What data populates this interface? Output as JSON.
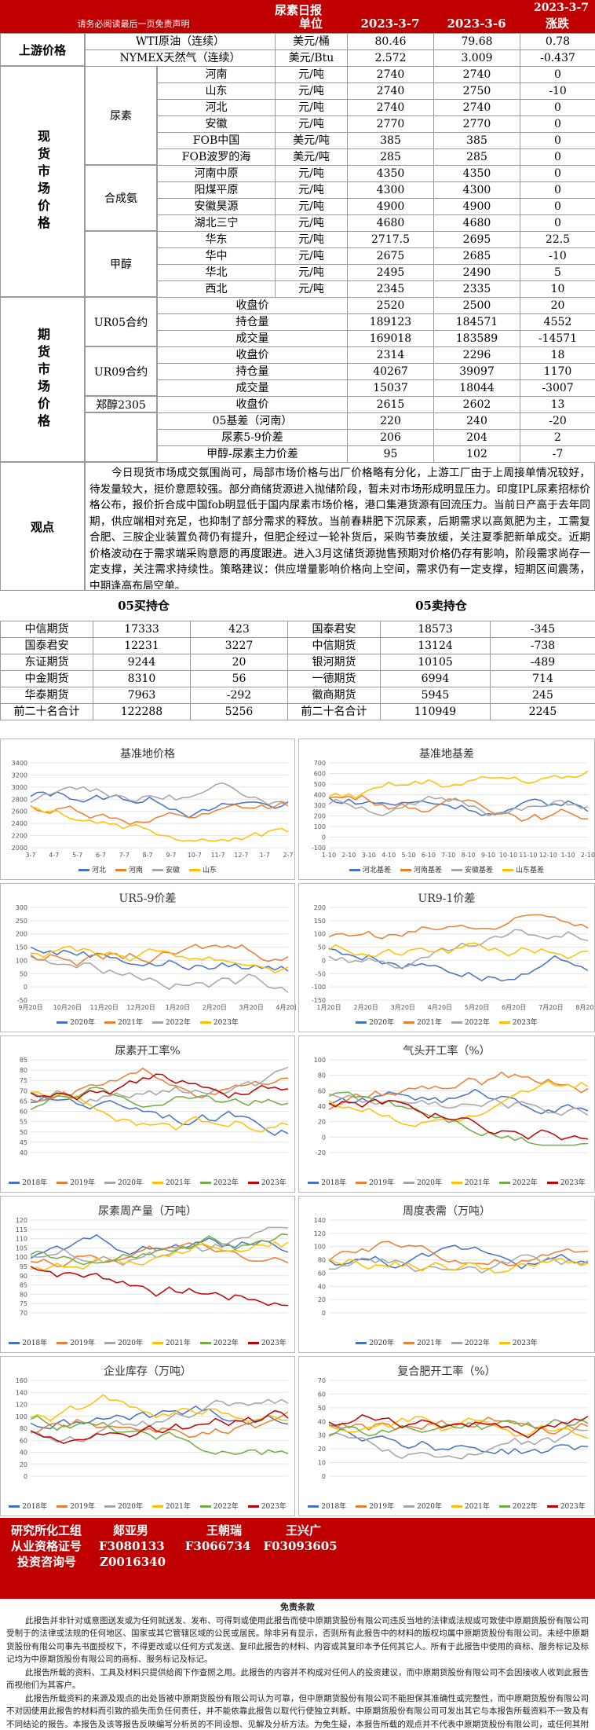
{
  "header": {
    "title": "尿素日报",
    "date": "2023-3-7",
    "disclaimer_link": "请务必阅读最后一页免责声明",
    "col_unit": "单位",
    "col_d1": "2023-3-7",
    "col_d2": "2023-3-6",
    "col_chg": "涨跌"
  },
  "upstream": {
    "label": "上游价格",
    "rows": [
      {
        "name": "WTI原油（连续）",
        "unit": "美元/桶",
        "v1": "80.46",
        "v2": "79.68",
        "chg": "0.78"
      },
      {
        "name": "NYMEX天然气（连续）",
        "unit": "美元/Btu",
        "v1": "2.572",
        "v2": "3.009",
        "chg": "-0.437"
      }
    ]
  },
  "spot": {
    "label": "现货市场价格",
    "groups": [
      {
        "name": "尿素",
        "rows": [
          {
            "name": "河南",
            "unit": "元/吨",
            "v1": "2740",
            "v2": "2740",
            "chg": "0"
          },
          {
            "name": "山东",
            "unit": "元/吨",
            "v1": "2740",
            "v2": "2750",
            "chg": "-10"
          },
          {
            "name": "河北",
            "unit": "元/吨",
            "v1": "2740",
            "v2": "2740",
            "chg": "0"
          },
          {
            "name": "安徽",
            "unit": "元/吨",
            "v1": "2770",
            "v2": "2770",
            "chg": "0"
          },
          {
            "name": "FOB中国",
            "unit": "美元/吨",
            "v1": "385",
            "v2": "385",
            "chg": "0"
          },
          {
            "name": "FOB波罗的海",
            "unit": "美元/吨",
            "v1": "285",
            "v2": "285",
            "chg": "0"
          }
        ]
      },
      {
        "name": "合成氨",
        "rows": [
          {
            "name": "河南中原",
            "unit": "元/吨",
            "v1": "4350",
            "v2": "4350",
            "chg": "0"
          },
          {
            "name": "阳煤平原",
            "unit": "元/吨",
            "v1": "4300",
            "v2": "4300",
            "chg": "0"
          },
          {
            "name": "安徽昊源",
            "unit": "元/吨",
            "v1": "4900",
            "v2": "4900",
            "chg": "0"
          },
          {
            "name": "湖北三宁",
            "unit": "元/吨",
            "v1": "4680",
            "v2": "4680",
            "chg": "0"
          }
        ]
      },
      {
        "name": "甲醇",
        "rows": [
          {
            "name": "华东",
            "unit": "元/吨",
            "v1": "2717.5",
            "v2": "2695",
            "chg": "22.5"
          },
          {
            "name": "华中",
            "unit": "元/吨",
            "v1": "2675",
            "v2": "2685",
            "chg": "-10"
          },
          {
            "name": "华北",
            "unit": "元/吨",
            "v1": "2495",
            "v2": "2490",
            "chg": "5"
          },
          {
            "name": "西北",
            "unit": "元/吨",
            "v1": "2345",
            "v2": "2335",
            "chg": "10"
          }
        ]
      }
    ]
  },
  "futures": {
    "label": "期货市场价格",
    "groups": [
      {
        "name": "UR05合约",
        "rows": [
          {
            "name": "收盘价",
            "v1": "2520",
            "v2": "2500",
            "chg": "20"
          },
          {
            "name": "持仓量",
            "v1": "189123",
            "v2": "184571",
            "chg": "4552"
          },
          {
            "name": "成交量",
            "v1": "169018",
            "v2": "183589",
            "chg": "-14571"
          }
        ]
      },
      {
        "name": "UR09合约",
        "rows": [
          {
            "name": "收盘价",
            "v1": "2314",
            "v2": "2296",
            "chg": "18"
          },
          {
            "name": "持仓量",
            "v1": "40267",
            "v2": "39097",
            "chg": "1170"
          },
          {
            "name": "成交量",
            "v1": "15037",
            "v2": "18044",
            "chg": "-3007"
          }
        ]
      },
      {
        "name": "郑醇2305",
        "rows": [
          {
            "name": "收盘价",
            "v1": "2615",
            "v2": "2602",
            "chg": "13"
          }
        ]
      }
    ],
    "spreads": [
      {
        "name": "05基差（河南）",
        "v1": "220",
        "v2": "240",
        "chg": "-20"
      },
      {
        "name": "尿素5-9价差",
        "v1": "206",
        "v2": "204",
        "chg": "2"
      },
      {
        "name": "甲醇-尿素主力价差",
        "v1": "95",
        "v2": "102",
        "chg": "-7"
      }
    ]
  },
  "opinion": {
    "label": "观点",
    "text": "今日现货市场成交氛围尚可，局部市场价格与出厂价格略有分化，上游工厂由于上周接单情况较好，待发量较大，挺价意愿较强。部分商储货源进入抛储阶段，暂未对市场形成明显压力。印度IPL尿素招标价格公布，报价折合成中国fob明显低于国内尿素市场价格，港口集港货源有回流压力。当前日产高于去年同期，供应端相对充足，也抑制了部分需求的释放。当前春耕肥下沉尿素，后期需求以高氮肥为主，工需复合肥、三胺企业装置负荷仍有提升，但肥企经过一轮补货后，采购节奏放缓，关注夏季肥新单成交。近期价格波动在于需求端采购意愿的再度跟进。进入3月这储货源抛售预期对价格仍存有影响，阶段需求尚存一定支撑，关注需求持续性。策略建议：供应增量影响价格向上空间，需求仍有一定支撑，短期区间震荡，中期逢高布局空单。"
  },
  "positions": {
    "long_title": "05买持仓",
    "short_title": "05卖持仓",
    "long": [
      {
        "name": "中信期货",
        "v": "17333",
        "chg": "423"
      },
      {
        "name": "国泰君安",
        "v": "12231",
        "chg": "3227"
      },
      {
        "name": "东证期货",
        "v": "9244",
        "chg": "20"
      },
      {
        "name": "中金期货",
        "v": "8310",
        "chg": "56"
      },
      {
        "name": "华泰期货",
        "v": "7963",
        "chg": "-292"
      },
      {
        "name": "前二十名合计",
        "v": "122288",
        "chg": "5256"
      }
    ],
    "short": [
      {
        "name": "国泰君安",
        "v": "18573",
        "chg": "-345"
      },
      {
        "name": "中信期货",
        "v": "13124",
        "chg": "-738"
      },
      {
        "name": "银河期货",
        "v": "10105",
        "chg": "-489"
      },
      {
        "name": "一德期货",
        "v": "6994",
        "chg": "714"
      },
      {
        "name": "徽商期货",
        "v": "5945",
        "chg": "245"
      },
      {
        "name": "前二十名合计",
        "v": "110949",
        "chg": "2245"
      }
    ]
  },
  "charts": [
    {
      "title": "基准地价格",
      "legend": [
        "河北",
        "河南",
        "安徽",
        "山东"
      ],
      "xticks": [
        "3-7",
        "4-7",
        "5-7",
        "6-7",
        "7-7",
        "8-7",
        "9-7",
        "10-7",
        "11-7",
        "12-7",
        "1-7",
        "2-7"
      ],
      "yticks": [
        "3400",
        "3200",
        "3000",
        "2800",
        "2600",
        "2400",
        "2200",
        "2000"
      ]
    },
    {
      "title": "基准地基差",
      "legend": [
        "河北基差",
        "河南基差",
        "安徽基差",
        "山东基差"
      ],
      "xticks": [
        "1-10",
        "2-10",
        "3-10",
        "4-10",
        "5-10",
        "6-10",
        "7-10",
        "8-10",
        "9-10",
        "10-10",
        "11-10",
        "12-10",
        "1-10",
        "2-10"
      ],
      "yticks": [
        "700",
        "600",
        "500",
        "400",
        "300",
        "200",
        "100",
        "0",
        "-100"
      ]
    },
    {
      "title": "UR5-9价差",
      "legend": [
        "2020年",
        "2021年",
        "2022年",
        "2023年"
      ],
      "xticks": [
        "9月20日",
        "10月20日",
        "11月20日",
        "12月20日",
        "1月20日",
        "2月20日",
        "3月20日",
        "4月20日"
      ],
      "yticks": [
        "300",
        "250",
        "200",
        "150",
        "100",
        "50",
        "0",
        "-50"
      ]
    },
    {
      "title": "UR9-1价差",
      "legend": [
        "2020年",
        "2021年",
        "2022年",
        "2023年"
      ],
      "xticks": [
        "1月20日",
        "2月20日",
        "3月20日",
        "4月20日",
        "5月20日",
        "6月20日",
        "7月20日",
        "8月20日"
      ],
      "yticks": [
        "200",
        "150",
        "100",
        "50",
        "0",
        "-50",
        "-100",
        "-150"
      ]
    },
    {
      "title": "尿素开工率%",
      "legend": [
        "2018年",
        "2019年",
        "2020年",
        "2021年",
        "2022年",
        "2023年"
      ],
      "yticks": [
        "85",
        "80",
        "75",
        "70",
        "65",
        "60",
        "55",
        "50",
        "45",
        "40"
      ]
    },
    {
      "title": "气头开工率（%）",
      "legend": [
        "2018年",
        "2019年",
        "2020年",
        "2021年",
        "2022年",
        "2023年"
      ],
      "yticks": [
        "100",
        "80",
        "60",
        "40",
        "20",
        "0",
        "-20"
      ]
    },
    {
      "title": "尿素周产量（万吨）",
      "legend": [
        "2018年",
        "2019年",
        "2020年",
        "2021年",
        "2022年",
        "2023年"
      ],
      "yticks": [
        "120",
        "115",
        "110",
        "105",
        "100",
        "95",
        "90",
        "85",
        "80",
        "75",
        "70"
      ]
    },
    {
      "title": "周度表需（万吨）",
      "legend": [
        "2020年",
        "2021年",
        "2022年",
        "2023年"
      ],
      "yticks": [
        "140",
        "120",
        "100",
        "80",
        "60",
        "40",
        "20",
        "0"
      ]
    },
    {
      "title": "企业库存（万吨）",
      "legend": [
        "2018年",
        "2019年",
        "2020年",
        "2021年",
        "2022年",
        "2023年"
      ],
      "yticks": [
        "160",
        "140",
        "120",
        "100",
        "80",
        "60",
        "40",
        "20",
        "0"
      ]
    },
    {
      "title": "复合肥开工率（%）",
      "legend": [
        "2018年",
        "2019年",
        "2020年",
        "2021年",
        "2022年",
        "2023年"
      ],
      "yticks": [
        "70",
        "60",
        "50",
        "40",
        "30",
        "20",
        "10",
        "0"
      ]
    }
  ],
  "footer": {
    "l1": "研究所化工组",
    "l1a": "郯亚男",
    "l1b": "王朝瑞",
    "l1c": "王兴广",
    "l2": "从业资格证号",
    "l2a": "F3080133",
    "l2b": "F3066734",
    "l2c": "F03093605",
    "l3": "投资咨询号",
    "l3a": "Z0016340"
  },
  "disclaimer": {
    "title": "免责条款",
    "p1": "此报告并非针对或意图送发或为任何就送发、发布、可得到或使用此报告而使中原期货股份有限公司违反当地的法律或法规或可致使中原期货股份有限公司受制于的法律或法规的任何地区、国家或其它管辖区域的公民或居民。除非另有显示，否则所有此报告中的材料的版权均属中原期货股份有限公司。未经中原期货股份有限公司事先书面授权下，不得更改或以任何方式发送、复印此报告的材料、内容或其复印本予任何其它人。所有于此报告中使用的商标、服务标记及标记均为中原期货股份有限公司的商标、服务标记及标记。",
    "p2": "此报告所载的资料、工具及材料只提供给阁下作查照之用。此报告的内容并不构成对任何人的投资建议，而中原期货股份有限公司不会因接收人收到此报告而视他们为其客户。",
    "p3": "此报告所载资料的来源及观点的出处皆被中原期货股份有限公司认为可靠，但中原期货股份有限公司不能担保其准确性或完整性，而中原期货股份有限公司不对因使用此报告的材料而引致的损失而负任何责任，并不能依靠此报告以取代行使独立判断。中原期货股份有限公司可发出其它与本报告所载资料不一致及有不同结论的报告。本报告及该等报告反映编写分析员的不同设想、见解及分析方法。为免生疑，本报告所载的观点并不代表中原期货股份有限公司，或任何其附属或联营公司的立场。此报告中所指的投资及服务可能不适合阁下，我们建议阁下如有任何疑问应咨询独立投资顾问。此报告并不构成投资、法律、会计或税务建议或担保任何投资或策略适合或切合阁下个别情况。此报告并不构成给予阁下私人咨询建议。"
  }
}
